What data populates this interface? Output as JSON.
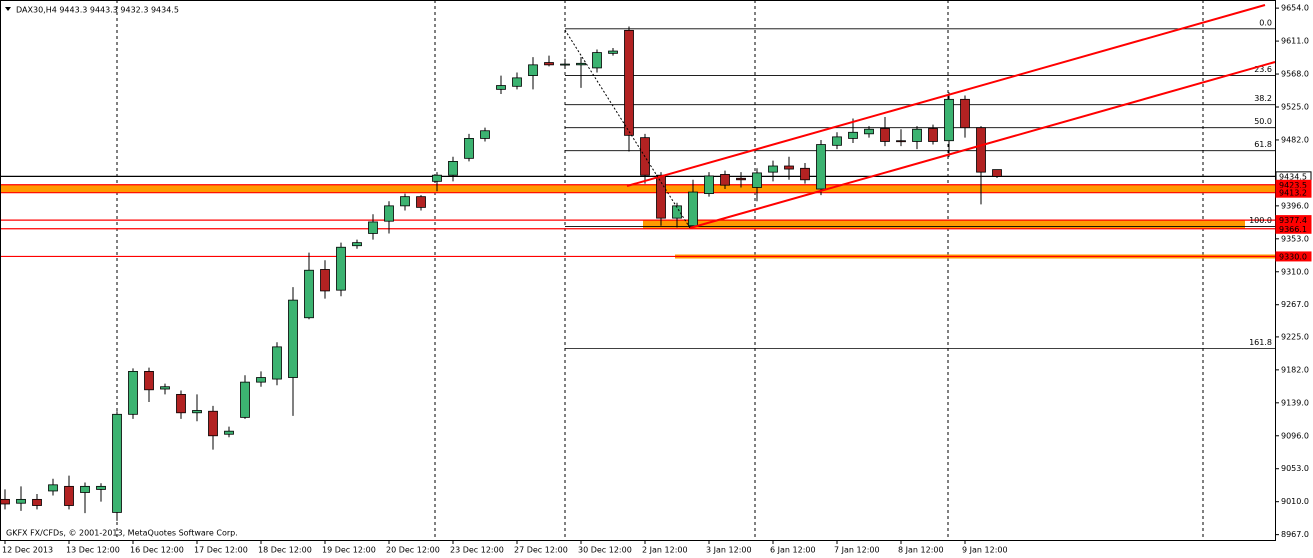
{
  "chart_data": {
    "type": "candlestick",
    "title": "DAX30,H4  9443.3 9443.3 9432.3 9434.5",
    "footer": "GKFX FX/CFDs, © 2001-2013, MetaQuotes Software Corp.",
    "categories": [
      "12 Dec 2013",
      null,
      null,
      null,
      "13 Dec 12:00",
      null,
      null,
      null,
      "16 Dec 12:00",
      null,
      null,
      null,
      "17 Dec 12:00",
      null,
      null,
      null,
      "18 Dec 12:00",
      null,
      null,
      null,
      "19 Dec 12:00",
      null,
      null,
      null,
      "20 Dec 12:00",
      null,
      null,
      null,
      "23 Dec 12:00",
      null,
      null,
      null,
      "27 Dec 12:00",
      null,
      null,
      null,
      "30 Dec 12:00",
      null,
      null,
      null,
      "2 Jan 12:00",
      null,
      null,
      null,
      "3 Jan 12:00",
      null,
      null,
      null,
      "6 Jan 12:00",
      null,
      null,
      null,
      "7 Jan 12:00",
      null,
      null,
      null,
      "8 Jan 12:00",
      null,
      null,
      null,
      "9 Jan 12:00",
      null,
      null
    ],
    "open": [
      9013,
      9008,
      9013,
      9024,
      9030,
      9022,
      9026,
      8996,
      9124,
      9180,
      9157,
      9150,
      9126,
      9128,
      9098,
      9120,
      9166,
      9170,
      9172,
      9250,
      9313,
      9286,
      9344,
      9360,
      9376,
      9396,
      9408,
      9428,
      9436,
      9458,
      9484,
      9548,
      9552,
      9566,
      9583,
      9580,
      9580,
      9576,
      9595,
      9625,
      9485,
      9436,
      9380,
      9370,
      9412,
      9437,
      9432,
      9420,
      9440,
      9448,
      9445,
      9418,
      9475,
      9484,
      9490,
      9497,
      9481,
      9480,
      9497,
      9481,
      9535,
      9498,
      9443.3
    ],
    "high": [
      9026,
      9030,
      9020,
      9040,
      9044,
      9035,
      9034,
      9128,
      9184,
      9185,
      9164,
      9155,
      9150,
      9135,
      9108,
      9175,
      9180,
      9218,
      9290,
      9335,
      9325,
      9348,
      9352,
      9385,
      9402,
      9412,
      9410,
      9440,
      9460,
      9490,
      9498,
      9566,
      9570,
      9590,
      9592,
      9588,
      9590,
      9600,
      9602,
      9630,
      9490,
      9440,
      9400,
      9430,
      9440,
      9442,
      9440,
      9445,
      9455,
      9460,
      9452,
      9482,
      9492,
      9510,
      9500,
      9512,
      9496,
      9500,
      9502,
      9544,
      9540,
      9500,
      9443.3
    ],
    "low": [
      9000,
      8998,
      9000,
      9018,
      9000,
      8995,
      9010,
      8985,
      9118,
      9140,
      9150,
      9118,
      9115,
      9078,
      9094,
      9118,
      9160,
      9162,
      9122,
      9248,
      9275,
      9278,
      9340,
      9352,
      9360,
      9390,
      9390,
      9415,
      9428,
      9454,
      9480,
      9542,
      9548,
      9548,
      9578,
      9575,
      9550,
      9570,
      9592,
      9467,
      9425,
      9370,
      9368,
      9368,
      9408,
      9418,
      9420,
      9402,
      9428,
      9430,
      9425,
      9410,
      9470,
      9478,
      9485,
      9474,
      9474,
      9470,
      9476,
      9460,
      9485,
      9398,
      9432.3
    ],
    "close": [
      9007,
      9013,
      9005,
      9032,
      9005,
      9030,
      9030,
      9124,
      9180,
      9156,
      9160,
      9126,
      9129,
      9096,
      9102,
      9166,
      9172,
      9212,
      9273,
      9312,
      9285,
      9342,
      9348,
      9375,
      9396,
      9408,
      9394,
      9436,
      9454,
      9484,
      9494,
      9553,
      9563,
      9580,
      9580,
      9581,
      9582,
      9596,
      9598,
      9488,
      9436,
      9380,
      9396,
      9414,
      9435,
      9423,
      9430,
      9439,
      9448,
      9444,
      9430,
      9476,
      9486,
      9492,
      9496,
      9480,
      9480,
      9496,
      9480,
      9535,
      9498,
      9440,
      9434.5
    ],
    "up_color": "#3cb371",
    "down_color": "#b22222",
    "ylim": [
      8960,
      9662
    ],
    "yticks": [
      {
        "value": 9654,
        "label": "9654.0"
      },
      {
        "value": 9611,
        "label": "9611.0"
      },
      {
        "value": 9568,
        "label": "9568.0"
      },
      {
        "value": 9525,
        "label": "9525.0"
      },
      {
        "value": 9482,
        "label": "9482.0"
      },
      {
        "value": 9396,
        "label": "9396.0"
      },
      {
        "value": 9353,
        "label": "9353.0"
      },
      {
        "value": 9310,
        "label": "9310.0"
      },
      {
        "value": 9267,
        "label": "9267.0"
      },
      {
        "value": 9225,
        "label": "9225.0"
      },
      {
        "value": 9182,
        "label": "9182.0"
      },
      {
        "value": 9139,
        "label": "9139.0"
      },
      {
        "value": 9096,
        "label": "9096.0"
      },
      {
        "value": 9053,
        "label": "9053.0"
      },
      {
        "value": 9010,
        "label": "9010.0"
      },
      {
        "value": 8967,
        "label": "8967.0"
      }
    ],
    "levels": [
      {
        "price": 9434.5,
        "color": "#000000"
      },
      {
        "price": 9423.5,
        "color": "#ff0000"
      },
      {
        "price": 9413.2,
        "color": "#ff0000"
      },
      {
        "price": 9377.4,
        "color": "#ff0000"
      },
      {
        "price": 9366.1,
        "color": "#ff0000"
      },
      {
        "price": {
          "value": 9330,
          "label": "9330.0"
        },
        "color": "#ff0000"
      }
    ],
    "fib": [
      {
        "label": "0.0",
        "price": 9627
      },
      {
        "label": "23.6",
        "price": 9566
      },
      {
        "label": "38.2",
        "price": 9528
      },
      {
        "label": "50.0",
        "price": 9498
      },
      {
        "label": "61.8",
        "price": 9468
      },
      {
        "label": "100.0",
        "price": 9369
      },
      {
        "label": "161.8",
        "price": 9210
      }
    ]
  }
}
